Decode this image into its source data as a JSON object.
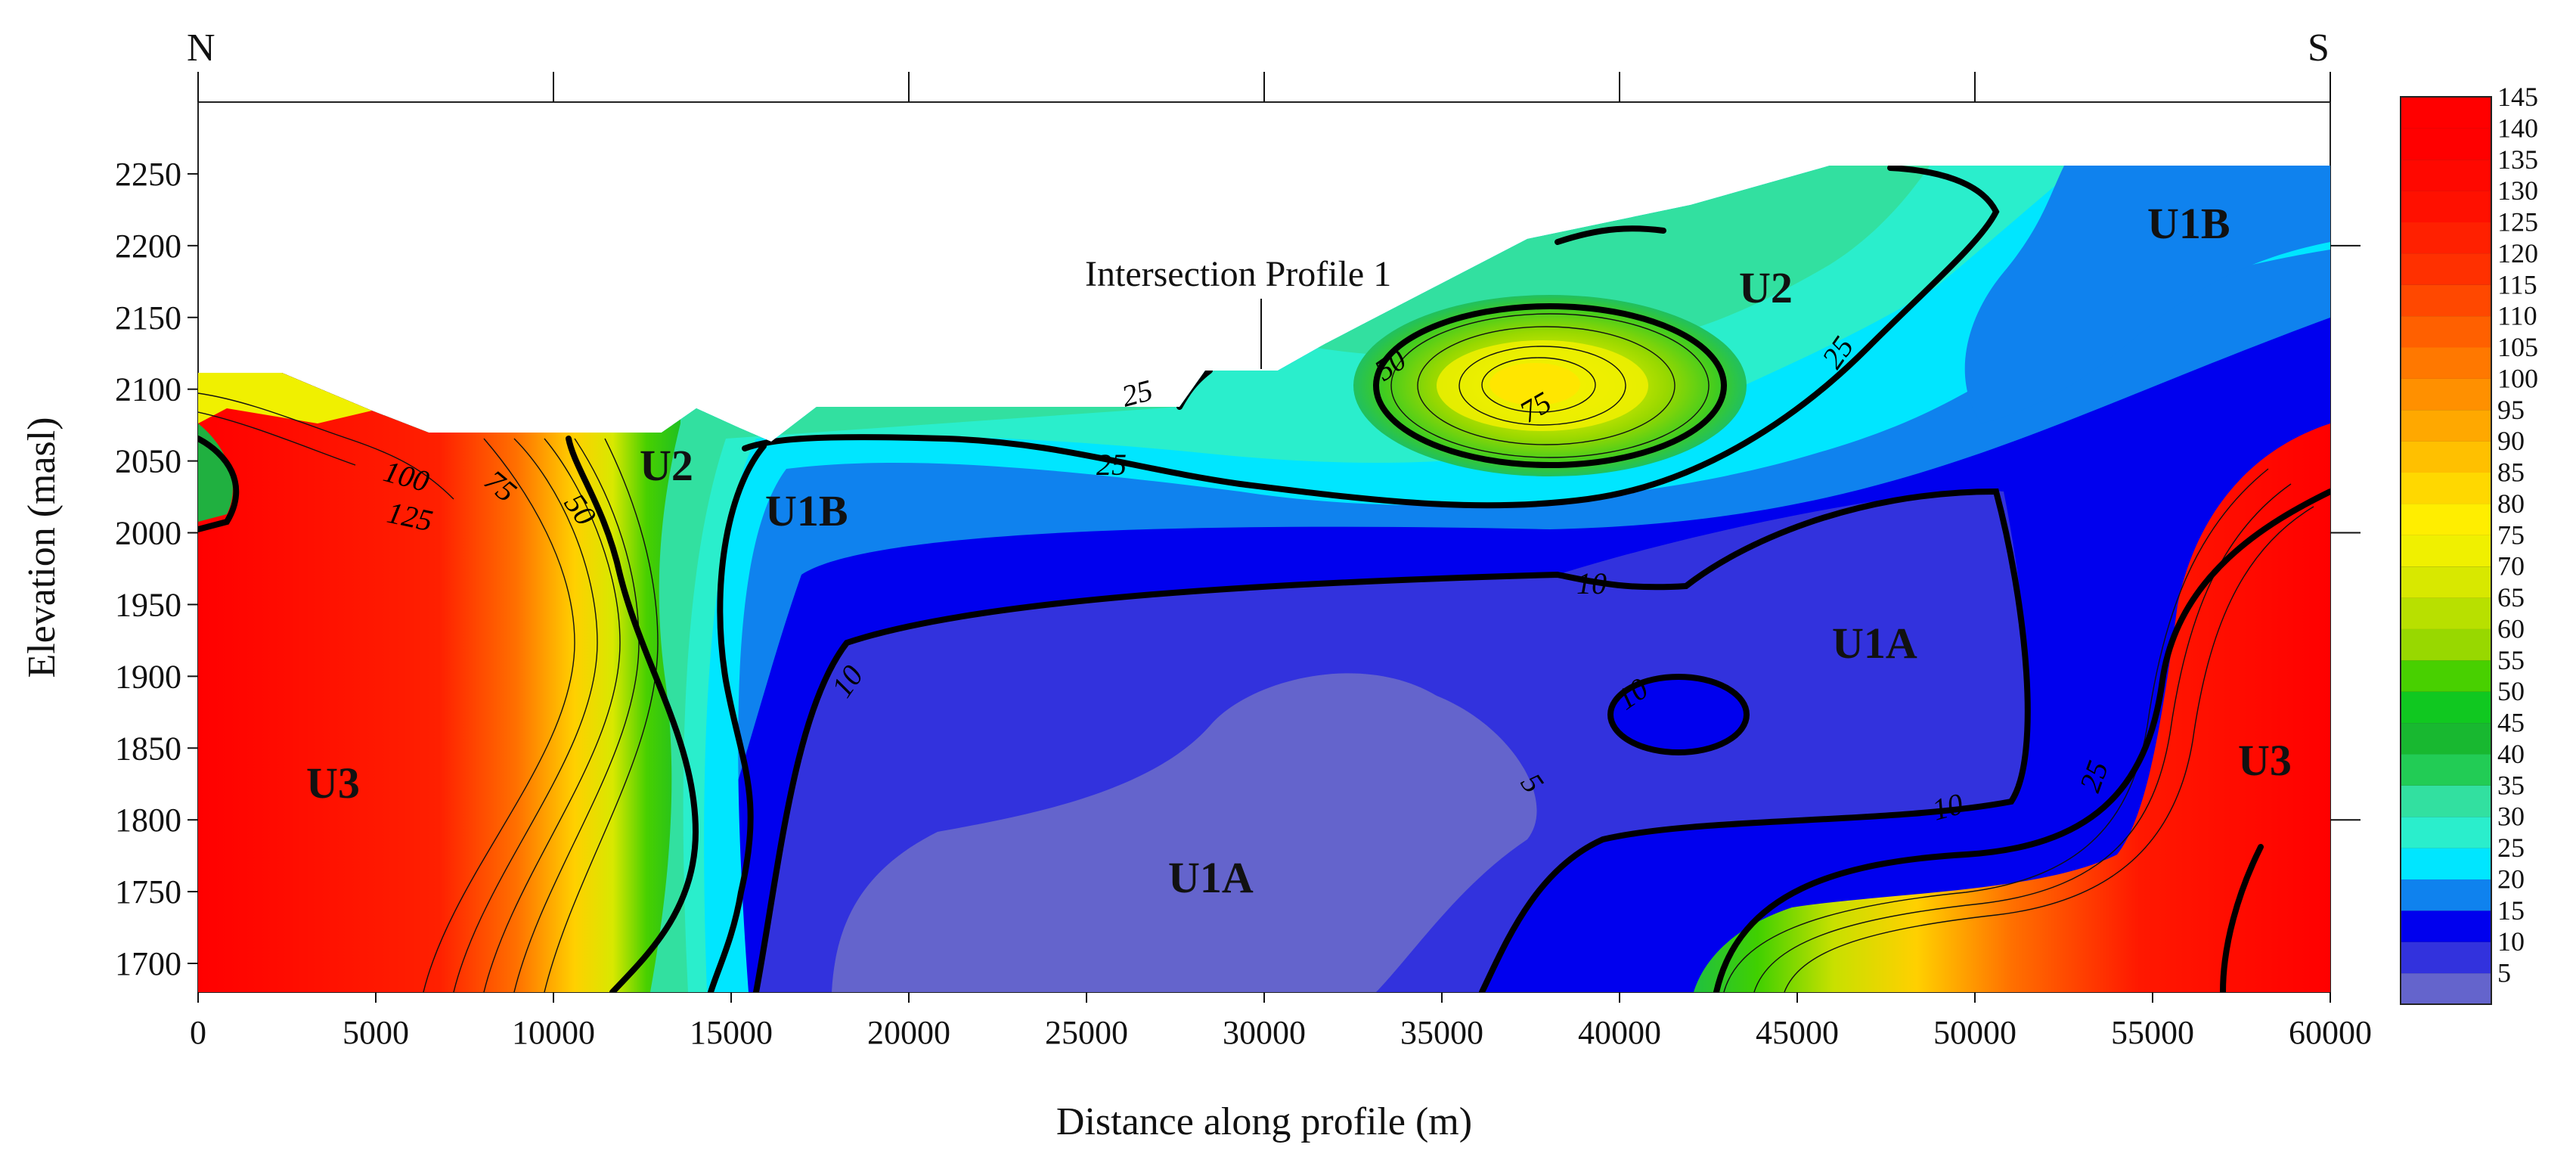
{
  "chart_data": {
    "type": "heatmap",
    "subtype": "filled-contour cross-section",
    "xlabel": "Distance along profile (m)",
    "ylabel": "Elevation (masl)",
    "xlim": [
      0,
      60000
    ],
    "ylim": [
      1680,
      2300
    ],
    "x_ticks": [
      0,
      5000,
      10000,
      15000,
      20000,
      25000,
      30000,
      35000,
      40000,
      45000,
      50000,
      55000,
      60000
    ],
    "y_ticks": [
      1700,
      1750,
      1800,
      1850,
      1900,
      1950,
      2000,
      2050,
      2100,
      2150,
      2200,
      2250
    ],
    "top_axis_ticks": [
      10000,
      20000,
      30000,
      40000,
      50000
    ],
    "right_axis_ticks": [
      1800,
      2000,
      2200
    ],
    "direction_labels": {
      "left": "N",
      "right": "S"
    },
    "colorbar": {
      "levels": [
        5,
        10,
        15,
        20,
        25,
        30,
        35,
        40,
        45,
        50,
        55,
        60,
        65,
        70,
        75,
        80,
        85,
        90,
        95,
        100,
        105,
        110,
        115,
        120,
        125,
        130,
        135,
        140,
        145
      ],
      "colors": [
        "#6464cc",
        "#3232dd",
        "#0000ee",
        "#0f82ee",
        "#00e6ff",
        "#2aeecc",
        "#32e0a0",
        "#22cc55",
        "#18b830",
        "#10c820",
        "#48d000",
        "#98d800",
        "#b8e000",
        "#d8e800",
        "#f0f000",
        "#ffee00",
        "#ffd800",
        "#ffc000",
        "#ffa800",
        "#ff9000",
        "#ff7800",
        "#ff6000",
        "#ff4800",
        "#ff3000",
        "#ff2000",
        "#ff1000",
        "#ff0800",
        "#ff0000",
        "#ff0000"
      ]
    },
    "contour_labels": [
      {
        "text": "10",
        "x": 9300,
        "y": 1885
      },
      {
        "text": "10",
        "x": 39800,
        "y": 1958
      },
      {
        "text": "10",
        "x": 40800,
        "y": 1872
      },
      {
        "text": "10",
        "x": 49200,
        "y": 1808
      },
      {
        "text": "5",
        "x": 37800,
        "y": 1832
      },
      {
        "text": "25",
        "x": 26500,
        "y": 2098
      },
      {
        "text": "25",
        "x": 25500,
        "y": 2058
      },
      {
        "text": "25",
        "x": 47200,
        "y": 2130
      },
      {
        "text": "25",
        "x": 53800,
        "y": 1832
      },
      {
        "text": "50",
        "x": 34000,
        "y": 2120
      },
      {
        "text": "75",
        "x": 38000,
        "y": 2092
      },
      {
        "text": "50",
        "x": 10900,
        "y": 2047
      },
      {
        "text": "75",
        "x": 8600,
        "y": 2047
      },
      {
        "text": "100",
        "x": 6000,
        "y": 2043
      },
      {
        "text": "125",
        "x": 6200,
        "y": 2013
      }
    ],
    "unit_labels": [
      {
        "text": "U3",
        "x": 4000,
        "y": 1822
      },
      {
        "text": "U2",
        "x": 13500,
        "y": 2045
      },
      {
        "text": "U1B",
        "x": 17500,
        "y": 2008
      },
      {
        "text": "U1A",
        "x": 29000,
        "y": 1758
      },
      {
        "text": "U2",
        "x": 44600,
        "y": 2162
      },
      {
        "text": "U1A",
        "x": 47700,
        "y": 1900
      },
      {
        "text": "U1B",
        "x": 56200,
        "y": 2212
      },
      {
        "text": "U3",
        "x": 58700,
        "y": 1835
      }
    ],
    "annotation": {
      "text": "Intersection Profile 1",
      "x": 30000,
      "y": 2110
    }
  }
}
